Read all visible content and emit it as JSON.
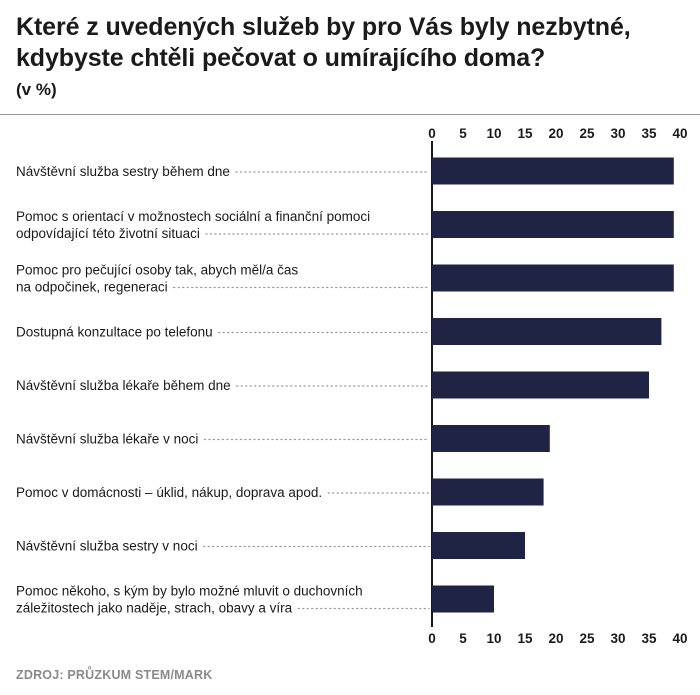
{
  "title": "Které z uvedených služeb by pro Vás byly nezbytné, kdybyste chtěli pečovat o umírajícího doma?",
  "unit": "(v %)",
  "source": "ZDROJ: PRŮZKUM STEM/MARK",
  "colors": {
    "bar": "#1f2444",
    "dots": "#9a9a9a",
    "axis": "#1a1a1a"
  },
  "chart_data": {
    "type": "bar",
    "orientation": "horizontal",
    "categories": [
      [
        "Návštěvní služba sestry během dne"
      ],
      [
        "Pomoc s orientací v možnostech sociální a finanční pomoci",
        "odpovídající této životní situaci"
      ],
      [
        "Pomoc pro pečující osoby tak, abych měl/a čas",
        "na odpočinek, regeneraci"
      ],
      [
        "Dostupná konzultace po telefonu"
      ],
      [
        "Návštěvní služba lékaře během dne"
      ],
      [
        "Návštěvní služba lékaře v noci"
      ],
      [
        "Pomoc v domácnosti – úklid, nákup, doprava apod."
      ],
      [
        "Návštěvní služba sestry v noci"
      ],
      [
        "Pomoc někoho, s kým by bylo možné mluvit o duchovních",
        "záležitostech jako naděje, strach, obavy a víra"
      ]
    ],
    "values": [
      39,
      39,
      39,
      37,
      35,
      19,
      18,
      15,
      10
    ],
    "xlim": [
      0,
      40
    ],
    "ticks": [
      "0",
      "5",
      "10",
      "15",
      "20",
      "25",
      "30",
      "35",
      "40"
    ],
    "axis_position": "top and bottom",
    "grid": false
  }
}
